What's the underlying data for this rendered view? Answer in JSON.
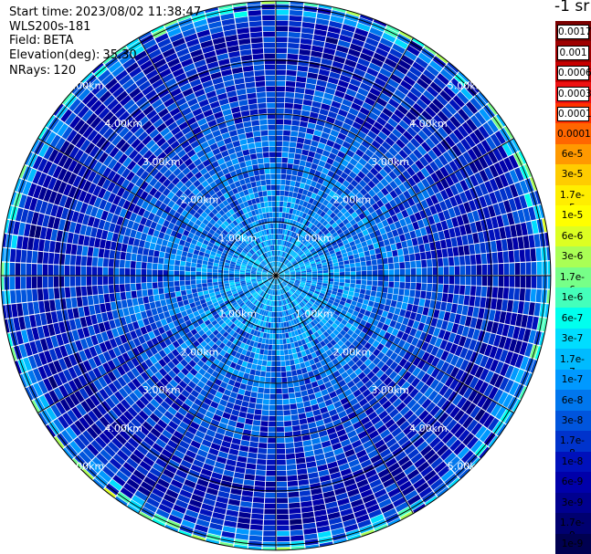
{
  "header": {
    "start_time_label": "Start time:",
    "start_time": "2023/08/02 11:38:47",
    "instrument": "WLS200s-181",
    "field_label": "Field:",
    "field": "BETA",
    "elevation_label": "Elevation(deg):",
    "elevation": "35.30",
    "nrays_label": "NRays:",
    "nrays": "120"
  },
  "colorbar": {
    "units": "-1 sr",
    "levels": [
      "0.0017",
      "0.001",
      "0.0006",
      "0.0003",
      "0.00017",
      "0.0001",
      "6e-5",
      "3e-5",
      "1.7e-5",
      "1e-5",
      "6e-6",
      "3e-6",
      "1.7e-6",
      "1e-6",
      "6e-7",
      "3e-7",
      "1.7e-7",
      "1e-7",
      "6e-8",
      "3e-8",
      "1.7e-8",
      "1e-8",
      "6e-9",
      "3e-9",
      "1.7e-9",
      "1e-9"
    ],
    "colors": [
      "#7a0000",
      "#9e0000",
      "#c80000",
      "#ee1111",
      "#ff3300",
      "#ff6600",
      "#ff9900",
      "#ffcc00",
      "#ffee00",
      "#ffff00",
      "#ddff22",
      "#aaff55",
      "#77ff88",
      "#44ffbb",
      "#00ffee",
      "#00ddff",
      "#00bbff",
      "#0099ff",
      "#0077ee",
      "#0055dd",
      "#0033cc",
      "#0011bb",
      "#0000aa",
      "#00008f",
      "#000070",
      "#000050"
    ]
  },
  "chart_data": {
    "type": "heatmap",
    "projection": "polar (PPI)",
    "title": "",
    "range_rings_km": [
      1,
      2,
      3,
      4,
      5
    ],
    "range_ring_labels": [
      "1.00km",
      "2.00km",
      "3.00km",
      "4.00km",
      "5.00km"
    ],
    "max_range_km": 5.1,
    "spoke_interval_deg": 30,
    "n_rays": 120,
    "field": "BETA",
    "color_scale": "log",
    "value_range": [
      1e-09,
      0.0017
    ],
    "typical_value_inner": 1.7e-07,
    "typical_value_outer": 1e-08,
    "edge_value_max": 1e-05
  }
}
